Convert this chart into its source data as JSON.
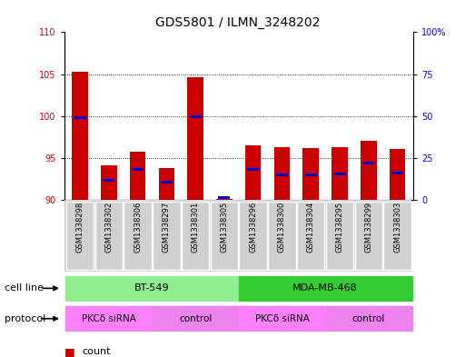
{
  "title": "GDS5801 / ILMN_3248202",
  "samples": [
    "GSM1338298",
    "GSM1338302",
    "GSM1338306",
    "GSM1338297",
    "GSM1338301",
    "GSM1338305",
    "GSM1338296",
    "GSM1338300",
    "GSM1338304",
    "GSM1338295",
    "GSM1338299",
    "GSM1338303"
  ],
  "red_values": [
    105.3,
    94.1,
    95.8,
    93.8,
    104.6,
    90.1,
    96.5,
    96.3,
    96.2,
    96.3,
    97.0,
    96.1
  ],
  "blue_values": [
    49.0,
    11.5,
    18.0,
    10.5,
    49.5,
    1.5,
    18.0,
    15.0,
    15.0,
    15.5,
    22.0,
    16.0
  ],
  "ymin": 90,
  "ymax": 110,
  "yticks_left": [
    90,
    95,
    100,
    105,
    110
  ],
  "yticks_right": [
    0,
    25,
    50,
    75,
    100
  ],
  "red_color": "#CC0000",
  "blue_color": "#0000CC",
  "bar_width": 0.55,
  "background_color": "#ffffff",
  "title_fontsize": 10,
  "tick_fontsize": 7,
  "sample_fontsize": 6,
  "legend_fontsize": 8,
  "cell_line_bt549_color": "#90EE90",
  "cell_line_mda_color": "#33CC33",
  "protocol_pkc_color": "#FF80FF",
  "protocol_ctrl_color": "#EE82EE",
  "label_bg": "#d0d0d0",
  "ytick_110_visible": true
}
